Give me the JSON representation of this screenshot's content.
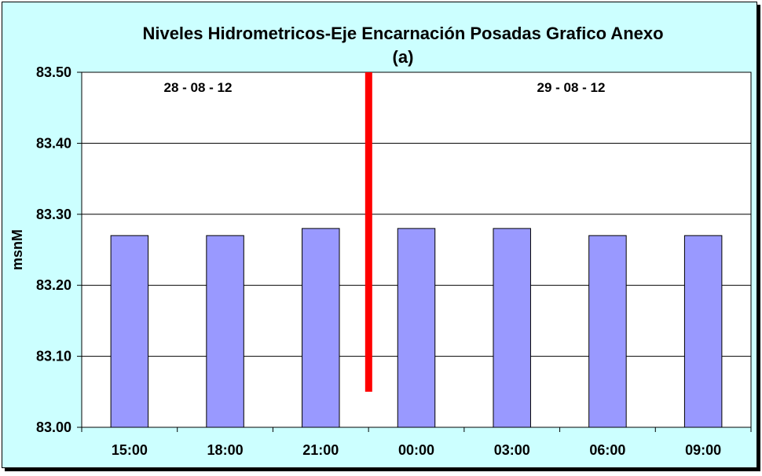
{
  "chart_data": {
    "type": "bar",
    "title": "Niveles Hidrometricos-Eje Encarnación Posadas Grafico Anexo",
    "subtitle": "(a)",
    "xlabel": "",
    "ylabel": "msnM",
    "categories": [
      "15:00",
      "18:00",
      "21:00",
      "00:00",
      "03:00",
      "06:00",
      "09:00"
    ],
    "series": [
      {
        "values": [
          83.27,
          83.27,
          83.28,
          83.28,
          83.28,
          83.27,
          83.27
        ]
      }
    ],
    "ylim": [
      83.0,
      83.5
    ],
    "yticks": [
      "83.00",
      "83.10",
      "83.20",
      "83.30",
      "83.40",
      "83.50"
    ],
    "grid": true,
    "annotations": [
      {
        "text": "28 - 08 - 12"
      },
      {
        "text": "29 - 08 - 12"
      }
    ],
    "divider": {
      "between": [
        "21:00",
        "00:00"
      ],
      "from": 83.05,
      "to": 83.5,
      "color": "#ff0000"
    },
    "colors": {
      "background": "#ccffff",
      "plot": "#ffffff",
      "bar": "#9999ff",
      "divider": "#ff0000"
    }
  }
}
